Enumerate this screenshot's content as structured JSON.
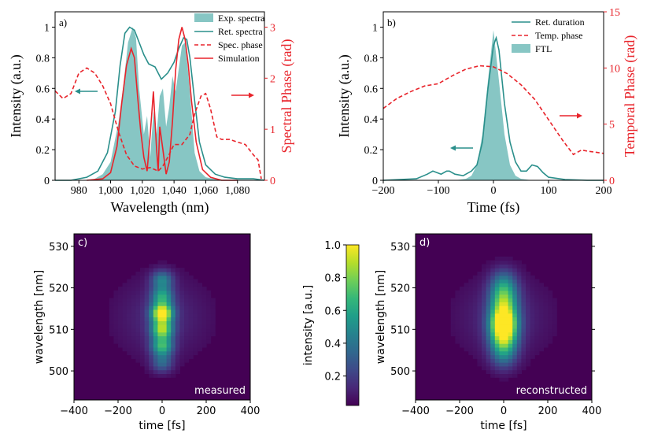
{
  "colors": {
    "teal": "#2a8f8b",
    "teal_fill": "#5fb3b0",
    "red": "#e8242b",
    "black": "#000000",
    "viridis": [
      "#440154",
      "#482878",
      "#3e4a89",
      "#31688e",
      "#26828e",
      "#1f9e89",
      "#35b779",
      "#6ece58",
      "#b5de2b",
      "#fde725"
    ]
  },
  "chart_data": [
    {
      "id": "a",
      "type": "line",
      "panel_label": "a)",
      "xlabel": "Wavelength (nm)",
      "ylabel_left": "Intensity (a.u.)",
      "ylabel_right": "Spectral Phase (rad)",
      "xlim": [
        965,
        1097
      ],
      "ylim_left": [
        0,
        1.1
      ],
      "ylim_right": [
        0,
        3.3
      ],
      "xticks": [
        980,
        1000,
        1020,
        1040,
        1060,
        1080
      ],
      "xticklabels": [
        "980",
        "1,000",
        "1,020",
        "1,040",
        "1,060",
        "1,080"
      ],
      "yticks_left": [
        0,
        0.2,
        0.4,
        0.6,
        0.8,
        1
      ],
      "yticklabels_left": [
        "0",
        "0.2",
        "0.4",
        "0.6",
        "0.8",
        "1"
      ],
      "yticks_right": [
        0,
        1,
        2,
        3
      ],
      "yticklabels_right": [
        "0",
        "1",
        "2",
        "3"
      ],
      "legend_position": "top-right",
      "legend": [
        "Exp. spectra",
        "Ret. spectra",
        "Spec. phase",
        "Simulation"
      ],
      "series": [
        {
          "name": "Exp. spectra",
          "style": "fill",
          "axis": "left",
          "x": [
            985,
            990,
            995,
            1000,
            1005,
            1008,
            1011,
            1014,
            1016,
            1018,
            1021,
            1023,
            1025,
            1027,
            1029,
            1031,
            1033,
            1035,
            1037,
            1039,
            1041,
            1043,
            1045,
            1047,
            1049,
            1051,
            1053,
            1056,
            1060,
            1065,
            1070
          ],
          "y": [
            0,
            0.01,
            0.04,
            0.12,
            0.38,
            0.62,
            0.9,
            1.0,
            0.93,
            0.6,
            0.3,
            0.42,
            0.15,
            0.45,
            0.3,
            0.55,
            0.6,
            0.35,
            0.48,
            0.68,
            0.58,
            0.73,
            0.88,
            0.9,
            0.7,
            0.45,
            0.18,
            0.06,
            0.02,
            0.01,
            0
          ]
        },
        {
          "name": "Ret. spectra",
          "style": "line",
          "axis": "left",
          "x": [
            965,
            975,
            985,
            992,
            998,
            1003,
            1006,
            1009,
            1012,
            1015,
            1018,
            1021,
            1024,
            1028,
            1032,
            1036,
            1040,
            1043,
            1046,
            1048,
            1050,
            1053,
            1056,
            1060,
            1066,
            1072,
            1080,
            1090,
            1097
          ],
          "y": [
            0,
            0,
            0.02,
            0.06,
            0.18,
            0.45,
            0.75,
            0.96,
            1.0,
            0.98,
            0.9,
            0.82,
            0.76,
            0.74,
            0.66,
            0.7,
            0.77,
            0.86,
            0.93,
            0.92,
            0.8,
            0.52,
            0.25,
            0.1,
            0.04,
            0.02,
            0.01,
            0.01,
            0
          ]
        },
        {
          "name": "Spec. phase",
          "style": "dashed",
          "axis": "right",
          "x": [
            965,
            970,
            975,
            980,
            985,
            990,
            995,
            1000,
            1005,
            1010,
            1015,
            1020,
            1025,
            1030,
            1033,
            1036,
            1040,
            1045,
            1050,
            1053,
            1057,
            1060,
            1063,
            1067,
            1070,
            1075,
            1080,
            1085,
            1090,
            1093,
            1095
          ],
          "y": [
            1.75,
            1.6,
            1.7,
            2.1,
            2.2,
            2.1,
            1.85,
            1.5,
            0.95,
            0.5,
            0.28,
            0.22,
            0.25,
            0.18,
            0.28,
            0.45,
            0.7,
            0.7,
            0.9,
            1.3,
            1.65,
            1.7,
            1.4,
            0.85,
            0.8,
            0.8,
            0.75,
            0.7,
            0.5,
            0.4,
            0.03
          ]
        },
        {
          "name": "Simulation",
          "style": "line",
          "axis": "left",
          "x": [
            985,
            995,
            1000,
            1004,
            1007,
            1010,
            1013,
            1015,
            1017,
            1019,
            1021,
            1023,
            1025,
            1027,
            1029,
            1030,
            1031,
            1033,
            1035,
            1037,
            1039,
            1041,
            1043,
            1045,
            1047,
            1049,
            1051,
            1054,
            1058,
            1063,
            1070,
            1080
          ],
          "y": [
            0,
            0.01,
            0.05,
            0.22,
            0.5,
            0.75,
            0.86,
            0.8,
            0.55,
            0.32,
            0.15,
            0.06,
            0.3,
            0.58,
            0.2,
            0.06,
            0.35,
            0.2,
            0.04,
            0.12,
            0.38,
            0.72,
            0.92,
            1.0,
            0.92,
            0.75,
            0.52,
            0.25,
            0.07,
            0.02,
            0,
            0
          ]
        }
      ]
    },
    {
      "id": "b",
      "type": "line",
      "panel_label": "b)",
      "xlabel": "Time (fs)",
      "ylabel_left": "Intensity (a.u.)",
      "ylabel_right": "Temporal Phase (rad)",
      "xlim": [
        -200,
        200
      ],
      "ylim_left": [
        0,
        1.1
      ],
      "ylim_right": [
        0,
        15
      ],
      "xticks": [
        -200,
        -100,
        0,
        100,
        200
      ],
      "xticklabels": [
        "−200",
        "−100",
        "0",
        "100",
        "200"
      ],
      "yticks_left": [
        0,
        0.2,
        0.4,
        0.6,
        0.8,
        1
      ],
      "yticklabels_left": [
        "0",
        "0.2",
        "0.4",
        "0.6",
        "0.8",
        "1"
      ],
      "yticks_right": [
        0,
        5,
        10,
        15
      ],
      "yticklabels_right": [
        "0",
        "5",
        "10",
        "15"
      ],
      "legend_position": "top-right",
      "legend": [
        "Ret. duration",
        "Temp. phase",
        "FTL"
      ],
      "series": [
        {
          "name": "FTL",
          "style": "fill",
          "axis": "left",
          "x": [
            -70,
            -50,
            -40,
            -30,
            -20,
            -10,
            0,
            10,
            20,
            30,
            40,
            50,
            70
          ],
          "y": [
            0,
            0.01,
            0.03,
            0.1,
            0.3,
            0.65,
            0.98,
            0.65,
            0.3,
            0.1,
            0.03,
            0.01,
            0
          ]
        },
        {
          "name": "Ret. duration",
          "style": "line",
          "axis": "left",
          "x": [
            -200,
            -170,
            -140,
            -120,
            -110,
            -95,
            -85,
            -80,
            -70,
            -55,
            -40,
            -30,
            -20,
            -10,
            0,
            5,
            10,
            20,
            30,
            40,
            50,
            60,
            70,
            80,
            90,
            100,
            130,
            170,
            200
          ],
          "y": [
            0,
            0.005,
            0.01,
            0.04,
            0.06,
            0.04,
            0.06,
            0.06,
            0.04,
            0.03,
            0.06,
            0.1,
            0.25,
            0.6,
            0.88,
            0.93,
            0.85,
            0.5,
            0.25,
            0.12,
            0.06,
            0.06,
            0.1,
            0.09,
            0.05,
            0.02,
            0.005,
            0,
            0
          ]
        },
        {
          "name": "Temp. phase",
          "style": "dashed",
          "axis": "right",
          "x": [
            -200,
            -175,
            -150,
            -125,
            -100,
            -75,
            -50,
            -25,
            0,
            25,
            50,
            75,
            100,
            125,
            145,
            160,
            170,
            185,
            200
          ],
          "y": [
            6.4,
            7.3,
            7.9,
            8.4,
            8.6,
            9.3,
            9.9,
            10.2,
            10.1,
            9.5,
            8.5,
            7.2,
            5.4,
            3.6,
            2.3,
            2.7,
            2.6,
            2.5,
            2.4
          ]
        }
      ]
    },
    {
      "id": "c",
      "type": "heatmap",
      "panel_label": "c)",
      "annotation": "measured",
      "xlabel": "time [fs]",
      "ylabel": "wavelength [nm]",
      "xlim": [
        -400,
        400
      ],
      "ylim": [
        493,
        533
      ],
      "xticks": [
        -400,
        -200,
        0,
        200,
        400
      ],
      "xticklabels": [
        "−400",
        "−200",
        "0",
        "200",
        "400"
      ],
      "yticks": [
        500,
        510,
        520,
        530
      ],
      "yticklabels": [
        "500",
        "510",
        "520",
        "530"
      ],
      "colormap": "viridis",
      "peak_time": 0,
      "peak_wavelength": 513,
      "peak_intensity": 1.0,
      "component_lobes": [
        {
          "t": 0,
          "wl": 514,
          "amp": 1.0
        },
        {
          "t": 0,
          "wl": 510,
          "amp": 0.75
        },
        {
          "t": 0,
          "wl": 506,
          "amp": 0.6
        },
        {
          "t": 0,
          "wl": 518,
          "amp": 0.5
        },
        {
          "t": 0,
          "wl": 522,
          "amp": 0.4
        },
        {
          "t": 0,
          "wl": 502,
          "amp": 0.3
        }
      ]
    },
    {
      "id": "colorbar",
      "type": "colorbar",
      "label": "intensity [a.u.]",
      "range": [
        0.02,
        1.0
      ],
      "ticks": [
        0.2,
        0.4,
        0.6,
        0.8,
        1.0
      ],
      "ticklabels": [
        "0.2",
        "0.4",
        "0.6",
        "0.8",
        "1.0"
      ],
      "colormap": "viridis"
    },
    {
      "id": "d",
      "type": "heatmap",
      "panel_label": "d)",
      "annotation": "reconstructed",
      "xlabel": "time [fs]",
      "ylabel": "wavelength [nm]",
      "xlim": [
        -400,
        400
      ],
      "ylim": [
        493,
        533
      ],
      "xticks": [
        -400,
        -200,
        0,
        200,
        400
      ],
      "xticklabels": [
        "−400",
        "−200",
        "0",
        "200",
        "400"
      ],
      "yticks": [
        500,
        510,
        520,
        530
      ],
      "yticklabels": [
        "500",
        "510",
        "520",
        "530"
      ],
      "colormap": "viridis",
      "peak_time": 0,
      "peak_wavelength": 512,
      "peak_intensity": 1.0,
      "component_lobes": [
        {
          "t": 0,
          "wl": 512,
          "amp": 1.0
        },
        {
          "t": 0,
          "wl": 508,
          "amp": 0.6
        },
        {
          "t": 0,
          "wl": 517,
          "amp": 0.55
        },
        {
          "t": 0,
          "wl": 521,
          "amp": 0.35
        },
        {
          "t": 0,
          "wl": 504,
          "amp": 0.3
        }
      ]
    }
  ]
}
